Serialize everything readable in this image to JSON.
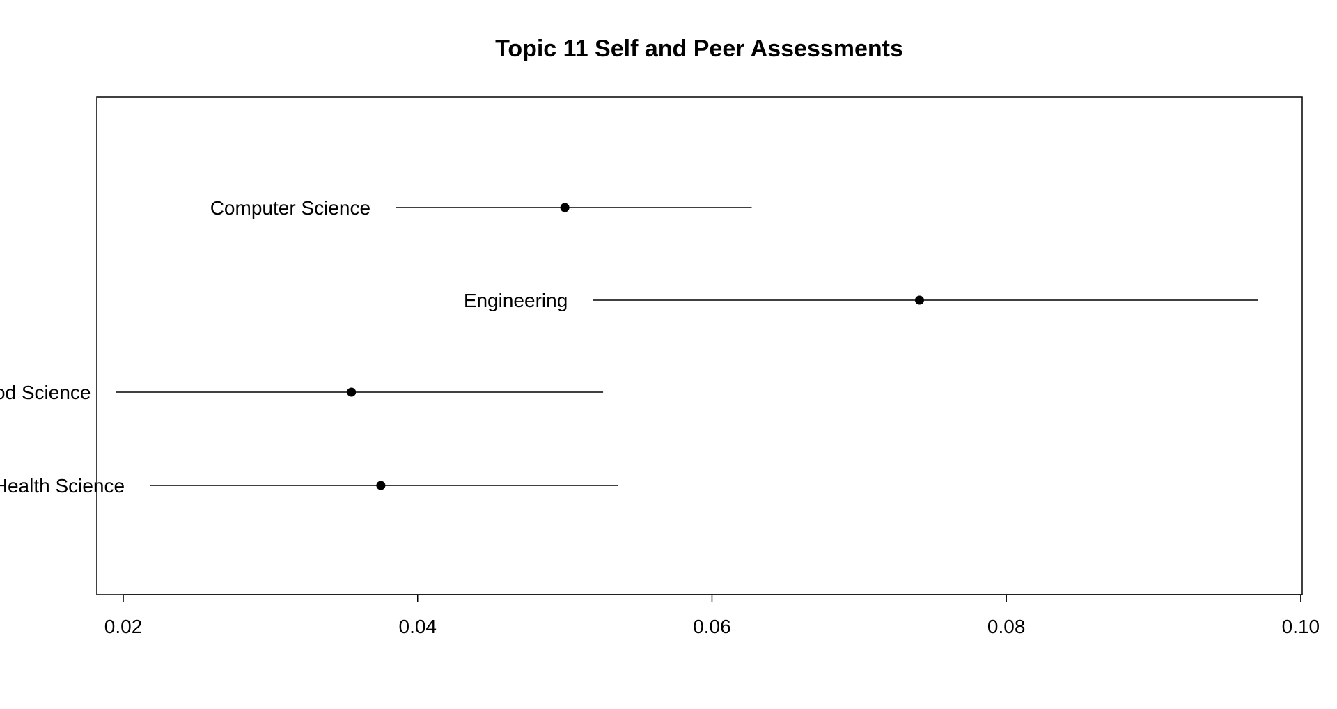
{
  "chart_data": {
    "type": "dot-interval",
    "title": "Topic 11 Self and Peer Assessments",
    "xlabel": "",
    "ylabel": "",
    "xlim": [
      0.0182,
      0.1001
    ],
    "x_ticks": [
      0.02,
      0.04,
      0.06,
      0.08,
      0.1
    ],
    "x_tick_labels": [
      "0.02",
      "0.04",
      "0.06",
      "0.08",
      "0.10"
    ],
    "grid": false,
    "legend": "none",
    "colors": {
      "point": "#000000",
      "line": "#000000",
      "frame": "#000000"
    },
    "series": [
      {
        "category": "Computer Science",
        "estimate": 0.05,
        "lower": 0.0385,
        "upper": 0.0627
      },
      {
        "category": "Engineering",
        "estimate": 0.0741,
        "lower": 0.0519,
        "upper": 0.0971
      },
      {
        "category": "Food Science",
        "estimate": 0.0355,
        "lower": 0.0195,
        "upper": 0.0526
      },
      {
        "category": "Health Science",
        "estimate": 0.0375,
        "lower": 0.0218,
        "upper": 0.0536
      }
    ]
  }
}
